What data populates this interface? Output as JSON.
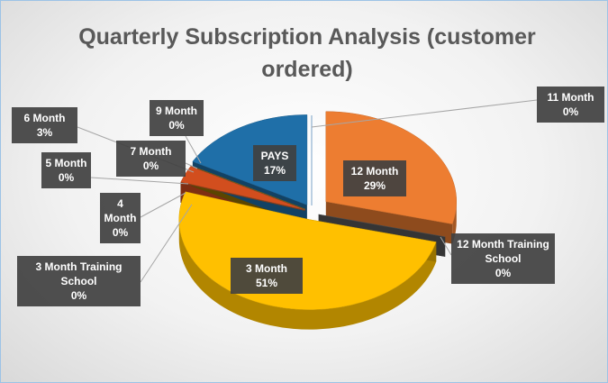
{
  "chart_data": {
    "type": "pie3d",
    "title": "Quarterly Subscription Analysis (customer ordered)",
    "categories": [
      "12 Month",
      "12 Month Training School",
      "3  Month",
      "3  Month Training School",
      "4 Month",
      "5 Month",
      "6  Month",
      "7  Month",
      "9  Month",
      "PAYS",
      "11 Month"
    ],
    "values": [
      29,
      0,
      51,
      0,
      0,
      0,
      3,
      0,
      0,
      17,
      0
    ],
    "value_labels": [
      "29%",
      "0%",
      "51%",
      "0%",
      "0%",
      "0%",
      "3%",
      "0%",
      "0%",
      "17%",
      "0%"
    ],
    "colors": [
      "#ed7d31",
      "#595959",
      "#ffc000",
      "#7f7f7f",
      "#264478",
      "#9e480e",
      "#d24e1e",
      "#636363",
      "#997300",
      "#1f6fa8",
      "#5b9bd5"
    ]
  }
}
